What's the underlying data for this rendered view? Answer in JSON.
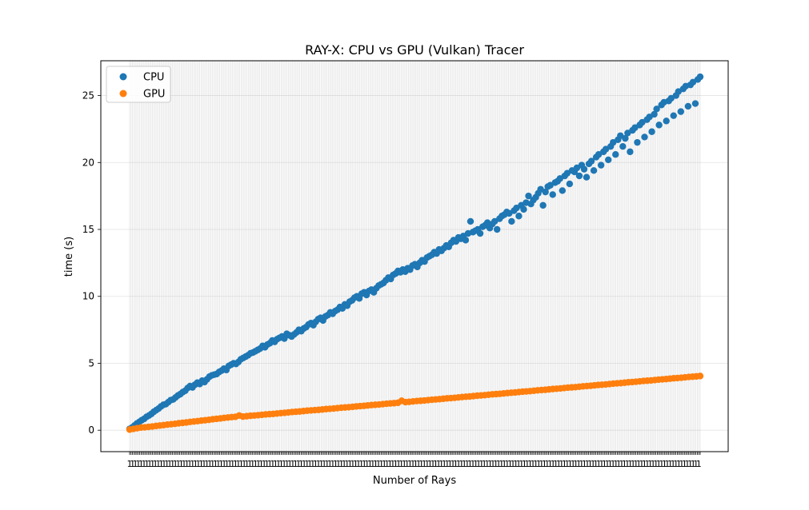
{
  "chart_data": {
    "type": "scatter",
    "title": "RAY-X: CPU vs GPU (Vulkan) Tracer",
    "xlabel": "Number of Rays",
    "ylabel": "time (s)",
    "x_tick_count": 400,
    "x_tick_labels_visible": [
      "1"
    ],
    "ylim": [
      -1.6,
      27.6
    ],
    "yticks": [
      0,
      5,
      10,
      15,
      20,
      25
    ],
    "grid": true,
    "legend_position": "upper left",
    "series": [
      {
        "name": "CPU",
        "color": "#1f77b4",
        "values": [
          0.1,
          0.2,
          0.35,
          0.5,
          0.62,
          0.75,
          0.85,
          1.0,
          1.1,
          1.22,
          1.38,
          1.5,
          1.62,
          1.78,
          1.9,
          1.95,
          2.1,
          2.25,
          2.3,
          2.45,
          2.6,
          2.7,
          2.85,
          2.95,
          3.15,
          3.3,
          3.2,
          3.4,
          3.55,
          3.45,
          3.7,
          3.6,
          3.8,
          4.0,
          4.1,
          4.15,
          4.2,
          4.35,
          4.45,
          4.6,
          4.5,
          4.8,
          4.9,
          5.0,
          4.95,
          5.1,
          5.3,
          5.4,
          5.5,
          5.6,
          5.75,
          5.8,
          5.9,
          6.0,
          6.1,
          6.3,
          6.2,
          6.4,
          6.5,
          6.7,
          6.6,
          6.8,
          6.9,
          7.0,
          6.85,
          7.2,
          7.1,
          7.0,
          7.15,
          7.3,
          7.5,
          7.4,
          7.6,
          7.7,
          7.9,
          8.0,
          7.85,
          8.1,
          8.3,
          8.4,
          8.2,
          8.5,
          8.6,
          8.8,
          8.7,
          8.9,
          9.0,
          9.2,
          9.1,
          9.4,
          9.3,
          9.6,
          9.7,
          9.9,
          10.0,
          9.85,
          10.2,
          10.3,
          10.1,
          10.4,
          10.5,
          10.3,
          10.6,
          10.8,
          10.9,
          11.0,
          11.2,
          11.4,
          11.3,
          11.6,
          11.7,
          11.9,
          11.8,
          12.0,
          11.85,
          12.1,
          12.0,
          12.3,
          12.4,
          12.2,
          12.5,
          12.7,
          12.6,
          12.9,
          13.0,
          13.1,
          13.3,
          13.2,
          13.5,
          13.4,
          13.6,
          13.8,
          13.7,
          14.0,
          14.2,
          14.1,
          14.4,
          14.3,
          14.5,
          14.2,
          14.7,
          15.6,
          14.8,
          14.9,
          15.0,
          14.7,
          15.2,
          15.3,
          15.5,
          15.1,
          15.4,
          15.6,
          15.0,
          15.8,
          16.0,
          16.1,
          16.3,
          16.2,
          15.6,
          16.4,
          16.6,
          16.0,
          16.8,
          16.5,
          17.0,
          17.5,
          16.9,
          17.2,
          17.4,
          17.7,
          18.0,
          16.8,
          17.8,
          18.2,
          18.3,
          17.6,
          18.5,
          18.6,
          18.8,
          17.9,
          19.0,
          19.2,
          18.4,
          19.4,
          19.3,
          19.6,
          19.0,
          19.8,
          19.5,
          18.9,
          19.9,
          20.1,
          19.4,
          20.4,
          20.6,
          19.8,
          20.8,
          21.0,
          20.2,
          21.2,
          21.5,
          20.6,
          21.7,
          22.0,
          21.2,
          21.8,
          22.2,
          20.8,
          22.4,
          22.6,
          21.5,
          22.8,
          23.0,
          21.9,
          23.2,
          23.4,
          22.3,
          23.6,
          24.0,
          22.8,
          24.3,
          24.5,
          23.1,
          24.6,
          24.8,
          23.5,
          25.0,
          25.3,
          23.8,
          25.5,
          25.7,
          24.2,
          25.8,
          26.0,
          24.4,
          26.2,
          26.4
        ]
      },
      {
        "name": "GPU",
        "color": "#ff7f0e",
        "values": [
          0.05,
          0.1,
          0.15,
          0.2,
          0.22,
          0.25,
          0.28,
          0.32,
          0.35,
          0.38,
          0.42,
          0.45,
          0.48,
          0.52,
          0.55,
          0.58,
          0.62,
          0.65,
          0.68,
          0.72,
          0.75,
          0.78,
          0.82,
          0.85,
          0.88,
          0.92,
          0.95,
          0.98,
          1.0,
          1.1,
          1.02,
          1.05,
          1.08,
          1.1,
          1.12,
          1.15,
          1.18,
          1.2,
          1.22,
          1.25,
          1.28,
          1.3,
          1.33,
          1.36,
          1.38,
          1.4,
          1.43,
          1.46,
          1.48,
          1.5,
          1.52,
          1.55,
          1.58,
          1.6,
          1.62,
          1.65,
          1.68,
          1.7,
          1.72,
          1.75,
          1.78,
          1.8,
          1.82,
          1.85,
          1.88,
          1.9,
          1.92,
          1.95,
          1.98,
          2.0,
          2.02,
          2.05,
          2.2,
          2.1,
          2.12,
          2.15,
          2.18,
          2.2,
          2.22,
          2.25,
          2.28,
          2.3,
          2.32,
          2.35,
          2.38,
          2.4,
          2.42,
          2.45,
          2.48,
          2.5,
          2.52,
          2.55,
          2.58,
          2.6,
          2.62,
          2.65,
          2.68,
          2.7,
          2.72,
          2.75,
          2.78,
          2.8,
          2.82,
          2.85,
          2.88,
          2.9,
          2.92,
          2.95,
          2.98,
          3.0,
          3.02,
          3.05,
          3.08,
          3.1,
          3.12,
          3.15,
          3.18,
          3.2,
          3.22,
          3.25,
          3.28,
          3.3,
          3.32,
          3.35,
          3.38,
          3.4,
          3.42,
          3.45,
          3.48,
          3.5,
          3.52,
          3.55,
          3.58,
          3.6,
          3.62,
          3.65,
          3.68,
          3.7,
          3.72,
          3.75,
          3.78,
          3.8,
          3.82,
          3.85,
          3.88,
          3.9,
          3.92,
          3.95,
          3.98,
          4.0,
          4.02,
          4.05
        ]
      }
    ]
  }
}
